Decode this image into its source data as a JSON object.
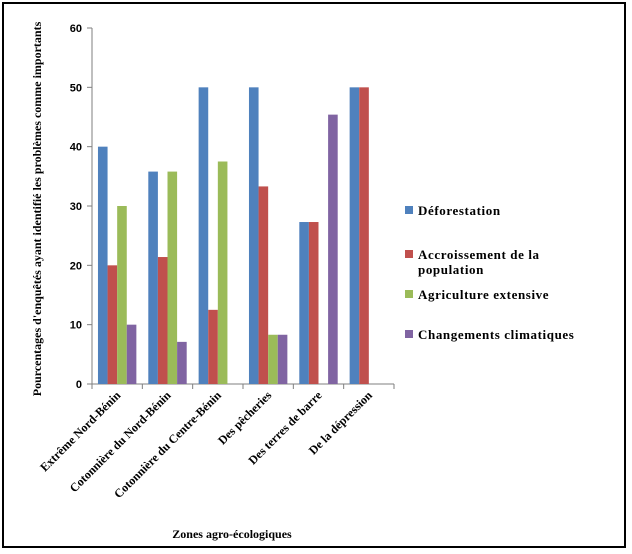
{
  "chart_data": {
    "type": "bar",
    "title": "",
    "xlabel": "Zones agro-écologiques",
    "ylabel": "Pourcentages d'enquêtés ayant identifié les problèmes comme importants",
    "ylim": [
      0,
      60
    ],
    "yticks": [
      0,
      10,
      20,
      30,
      40,
      50,
      60
    ],
    "grid": false,
    "legend_position": "right",
    "categories": [
      "Extrême Nord-Bénin",
      "Cotonnière du Nord-Bénin",
      "Cotonnière du Centre-Bénin",
      "Des pêcheries",
      "Des terres de barre",
      "De la dépression"
    ],
    "series": [
      {
        "name": "Déforestation",
        "color": "#4F81BD",
        "values": [
          40,
          35.8,
          50,
          50,
          27.3,
          50
        ]
      },
      {
        "name": "Accroissement de la population",
        "color": "#C0504D",
        "values": [
          20,
          21.4,
          12.5,
          33.3,
          27.3,
          50
        ]
      },
      {
        "name": "Agriculture extensive",
        "color": "#9BBB59",
        "values": [
          30,
          35.8,
          37.5,
          8.3,
          0,
          0
        ]
      },
      {
        "name": "Changements climatiques",
        "color": "#8064A2",
        "values": [
          10,
          7.1,
          0,
          8.3,
          45.4,
          0
        ]
      }
    ]
  }
}
